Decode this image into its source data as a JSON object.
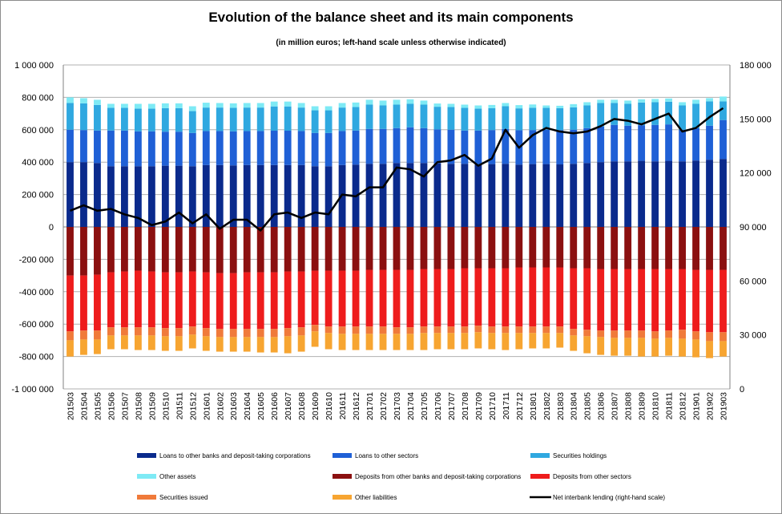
{
  "chart_data": {
    "type": "bar",
    "title": "Evolution of the balance sheet and its main components",
    "subtitle": "(in million euros; left-hand scale unless otherwise indicated)",
    "ylim": [
      -1000000,
      1000000
    ],
    "y2lim": [
      0,
      180000
    ],
    "yticks": [
      "1 000 000",
      "800 000",
      "600 000",
      "400 000",
      "200 000",
      "0",
      "-200 000",
      "-400 000",
      "-600 000",
      "-800 000",
      "-1 000 000"
    ],
    "y2ticks": [
      "180 000",
      "150 000",
      "120 000",
      "90 000",
      "60 000",
      "30 000",
      "0"
    ],
    "categories": [
      "201503",
      "201504",
      "201505",
      "201506",
      "201507",
      "201508",
      "201509",
      "201510",
      "201511",
      "201512",
      "201601",
      "201602",
      "201603",
      "201604",
      "201605",
      "201606",
      "201607",
      "201608",
      "201609",
      "201610",
      "201611",
      "201612",
      "201701",
      "201702",
      "201703",
      "201704",
      "201705",
      "201706",
      "201707",
      "201708",
      "201709",
      "201710",
      "201711",
      "201712",
      "201801",
      "201802",
      "201803",
      "201804",
      "201805",
      "201806",
      "201807",
      "201808",
      "201809",
      "201810",
      "201811",
      "201812",
      "201901",
      "201902",
      "201903"
    ],
    "series": [
      {
        "name": "Loans to other banks and deposit-taking corporations",
        "color": "#0a2a8c",
        "values": [
          400000,
          400000,
          395000,
          375000,
          375000,
          375000,
          375000,
          378000,
          378000,
          375000,
          382000,
          382000,
          380000,
          382000,
          382000,
          382000,
          382000,
          382000,
          375000,
          375000,
          382000,
          385000,
          390000,
          390000,
          395000,
          395000,
          395000,
          392000,
          390000,
          390000,
          385000,
          388000,
          390000,
          385000,
          388000,
          388000,
          386000,
          390000,
          395000,
          400000,
          405000,
          405000,
          408000,
          405000,
          408000,
          405000,
          410000,
          415000,
          420000
        ]
      },
      {
        "name": "Loans to other sectors",
        "color": "#1f60d6",
        "values": [
          200000,
          198000,
          200000,
          220000,
          220000,
          215000,
          215000,
          210000,
          210000,
          205000,
          210000,
          210000,
          210000,
          210000,
          210000,
          212000,
          212000,
          210000,
          205000,
          205000,
          210000,
          210000,
          215000,
          215000,
          215000,
          220000,
          215000,
          210000,
          210000,
          205000,
          210000,
          210000,
          215000,
          212000,
          210000,
          212000,
          212000,
          210000,
          215000,
          220000,
          225000,
          220000,
          220000,
          225000,
          225000,
          195000,
          200000,
          210000,
          240000
        ]
      },
      {
        "name": "Securities holdings",
        "color": "#2fa8e0",
        "values": [
          165000,
          165000,
          158000,
          140000,
          140000,
          140000,
          140000,
          145000,
          145000,
          135000,
          145000,
          145000,
          145000,
          145000,
          145000,
          150000,
          150000,
          145000,
          140000,
          140000,
          145000,
          145000,
          150000,
          145000,
          145000,
          145000,
          145000,
          140000,
          140000,
          140000,
          135000,
          135000,
          140000,
          135000,
          138000,
          135000,
          135000,
          138000,
          140000,
          145000,
          135000,
          135000,
          140000,
          140000,
          140000,
          150000,
          150000,
          150000,
          115000
        ]
      },
      {
        "name": "Other assets",
        "color": "#7eeaf5",
        "values": [
          35000,
          32000,
          32000,
          25000,
          25000,
          30000,
          30000,
          30000,
          30000,
          30000,
          30000,
          28000,
          28000,
          28000,
          28000,
          30000,
          30000,
          28000,
          25000,
          25000,
          28000,
          28000,
          30000,
          30000,
          30000,
          28000,
          25000,
          20000,
          20000,
          20000,
          20000,
          20000,
          20000,
          20000,
          20000,
          15000,
          15000,
          20000,
          20000,
          20000,
          20000,
          20000,
          20000,
          20000,
          20000,
          20000,
          25000,
          20000,
          30000
        ]
      },
      {
        "name": "Deposits from other banks and deposit-taking corporations",
        "color": "#8b1010",
        "values": [
          -300000,
          -300000,
          -295000,
          -280000,
          -275000,
          -270000,
          -275000,
          -280000,
          -280000,
          -275000,
          -280000,
          -285000,
          -285000,
          -280000,
          -280000,
          -280000,
          -275000,
          -275000,
          -270000,
          -270000,
          -270000,
          -270000,
          -265000,
          -265000,
          -265000,
          -265000,
          -260000,
          -260000,
          -260000,
          -255000,
          -255000,
          -255000,
          -255000,
          -250000,
          -250000,
          -250000,
          -250000,
          -255000,
          -255000,
          -260000,
          -260000,
          -260000,
          -260000,
          -260000,
          -260000,
          -260000,
          -265000,
          -265000,
          -265000
        ]
      },
      {
        "name": "Deposits from other sectors",
        "color": "#ee1c1c",
        "values": [
          -345000,
          -340000,
          -345000,
          -340000,
          -345000,
          -350000,
          -345000,
          -345000,
          -345000,
          -340000,
          -345000,
          -345000,
          -345000,
          -350000,
          -350000,
          -350000,
          -350000,
          -345000,
          -335000,
          -345000,
          -345000,
          -345000,
          -350000,
          -350000,
          -355000,
          -355000,
          -355000,
          -355000,
          -355000,
          -360000,
          -355000,
          -360000,
          -360000,
          -365000,
          -365000,
          -365000,
          -365000,
          -375000,
          -380000,
          -380000,
          -380000,
          -380000,
          -380000,
          -385000,
          -380000,
          -375000,
          -380000,
          -385000,
          -385000
        ]
      },
      {
        "name": "Securities issued",
        "color": "#f07a3a",
        "values": [
          -55000,
          -55000,
          -55000,
          -50000,
          -50000,
          -50000,
          -50000,
          -50000,
          -50000,
          -50000,
          -50000,
          -50000,
          -50000,
          -50000,
          -50000,
          -50000,
          -50000,
          -50000,
          -40000,
          -40000,
          -45000,
          -45000,
          -45000,
          -45000,
          -40000,
          -40000,
          -40000,
          -40000,
          -40000,
          -40000,
          -40000,
          -40000,
          -40000,
          -40000,
          -40000,
          -40000,
          -40000,
          -40000,
          -40000,
          -40000,
          -45000,
          -45000,
          -45000,
          -45000,
          -45000,
          -55000,
          -50000,
          -55000,
          -55000
        ]
      },
      {
        "name": "Other liabilities",
        "color": "#f7a531",
        "values": [
          -100000,
          -95000,
          -90000,
          -85000,
          -85000,
          -90000,
          -90000,
          -90000,
          -90000,
          -85000,
          -90000,
          -90000,
          -90000,
          -90000,
          -95000,
          -95000,
          -105000,
          -100000,
          -95000,
          -100000,
          -100000,
          -100000,
          -100000,
          -100000,
          -100000,
          -100000,
          -105000,
          -100000,
          -100000,
          -100000,
          -100000,
          -100000,
          -105000,
          -100000,
          -95000,
          -95000,
          -90000,
          -95000,
          -105000,
          -110000,
          -110000,
          -110000,
          -115000,
          -110000,
          -110000,
          -110000,
          -110000,
          -105000,
          -95000
        ]
      },
      {
        "name": "Net interbank lending (right-hand scale)",
        "color": "#000000",
        "type": "line",
        "axis": "right",
        "values": [
          99000,
          102000,
          99000,
          100000,
          97000,
          95000,
          91000,
          93000,
          98000,
          92000,
          97000,
          89000,
          94000,
          94000,
          88000,
          97000,
          98000,
          95000,
          98000,
          97000,
          108000,
          107000,
          112000,
          112000,
          123000,
          122000,
          118000,
          126000,
          127000,
          130000,
          124000,
          128000,
          144000,
          134000,
          141000,
          145000,
          143000,
          142000,
          143000,
          146000,
          150000,
          149000,
          147000,
          150000,
          153000,
          143000,
          145000,
          151000,
          156000
        ]
      }
    ]
  }
}
